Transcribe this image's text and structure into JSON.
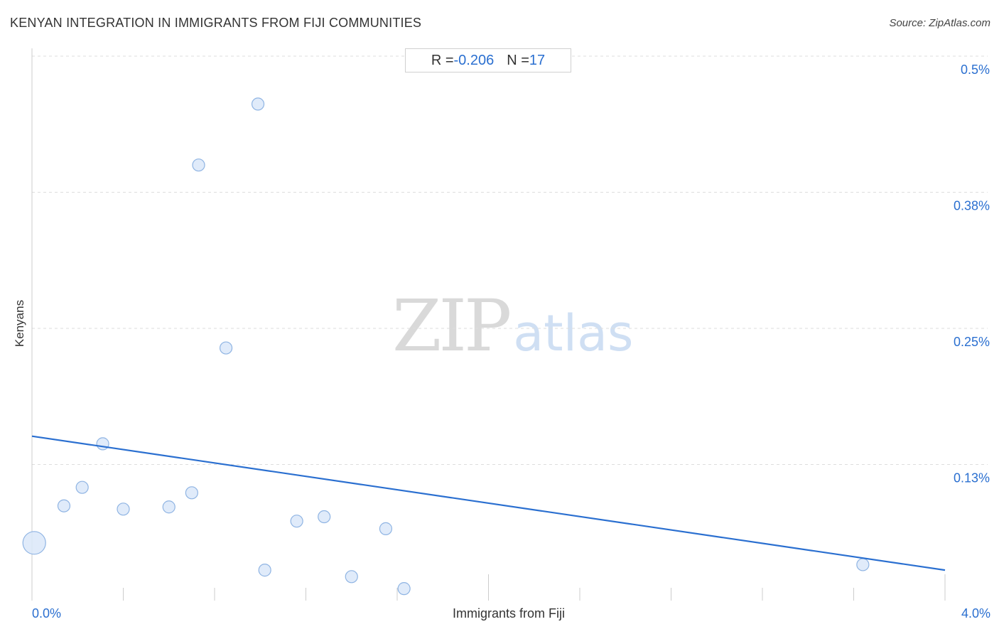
{
  "header": {
    "title": "KENYAN INTEGRATION IN IMMIGRANTS FROM FIJI COMMUNITIES",
    "source": "Source: ZipAtlas.com"
  },
  "stats": {
    "r_label": "R = ",
    "r_value": "-0.206",
    "n_label": "N = ",
    "n_value": "17"
  },
  "watermark": {
    "zip": "ZIP",
    "atlas": "atlas"
  },
  "colors": {
    "accent": "#2a6fd0",
    "point_fill": "#dbe8f9",
    "point_stroke": "#8fb4e3",
    "grid": "#dddddd"
  },
  "chart_data": {
    "type": "scatter",
    "xlabel": "Immigrants from Fiji",
    "ylabel": "Kenyans",
    "xlim": [
      0,
      4.0
    ],
    "ylim": [
      0,
      0.5
    ],
    "x_tick_labels": [
      "0.0%",
      "4.0%"
    ],
    "y_ticks": [
      {
        "value": 0.5,
        "label": "0.5%"
      },
      {
        "value": 0.375,
        "label": "0.38%"
      },
      {
        "value": 0.25,
        "label": "0.25%"
      },
      {
        "value": 0.125,
        "label": "0.13%"
      }
    ],
    "grid": true,
    "points": [
      {
        "x": 0.01,
        "y": 0.053,
        "size": 3
      },
      {
        "x": 0.14,
        "y": 0.087,
        "size": 1
      },
      {
        "x": 0.22,
        "y": 0.104,
        "size": 1
      },
      {
        "x": 0.31,
        "y": 0.144,
        "size": 1
      },
      {
        "x": 0.4,
        "y": 0.084,
        "size": 1
      },
      {
        "x": 0.6,
        "y": 0.086,
        "size": 1
      },
      {
        "x": 0.7,
        "y": 0.099,
        "size": 1
      },
      {
        "x": 0.73,
        "y": 0.4,
        "size": 1
      },
      {
        "x": 0.85,
        "y": 0.232,
        "size": 1
      },
      {
        "x": 0.99,
        "y": 0.456,
        "size": 1
      },
      {
        "x": 1.02,
        "y": 0.028,
        "size": 1
      },
      {
        "x": 1.16,
        "y": 0.073,
        "size": 1
      },
      {
        "x": 1.28,
        "y": 0.077,
        "size": 1
      },
      {
        "x": 1.4,
        "y": 0.022,
        "size": 1
      },
      {
        "x": 1.55,
        "y": 0.066,
        "size": 1
      },
      {
        "x": 1.63,
        "y": 0.011,
        "size": 1
      },
      {
        "x": 3.64,
        "y": 0.033,
        "size": 1
      }
    ],
    "trendline": {
      "x": [
        0,
        4.0
      ],
      "y": [
        0.151,
        0.028
      ]
    }
  }
}
